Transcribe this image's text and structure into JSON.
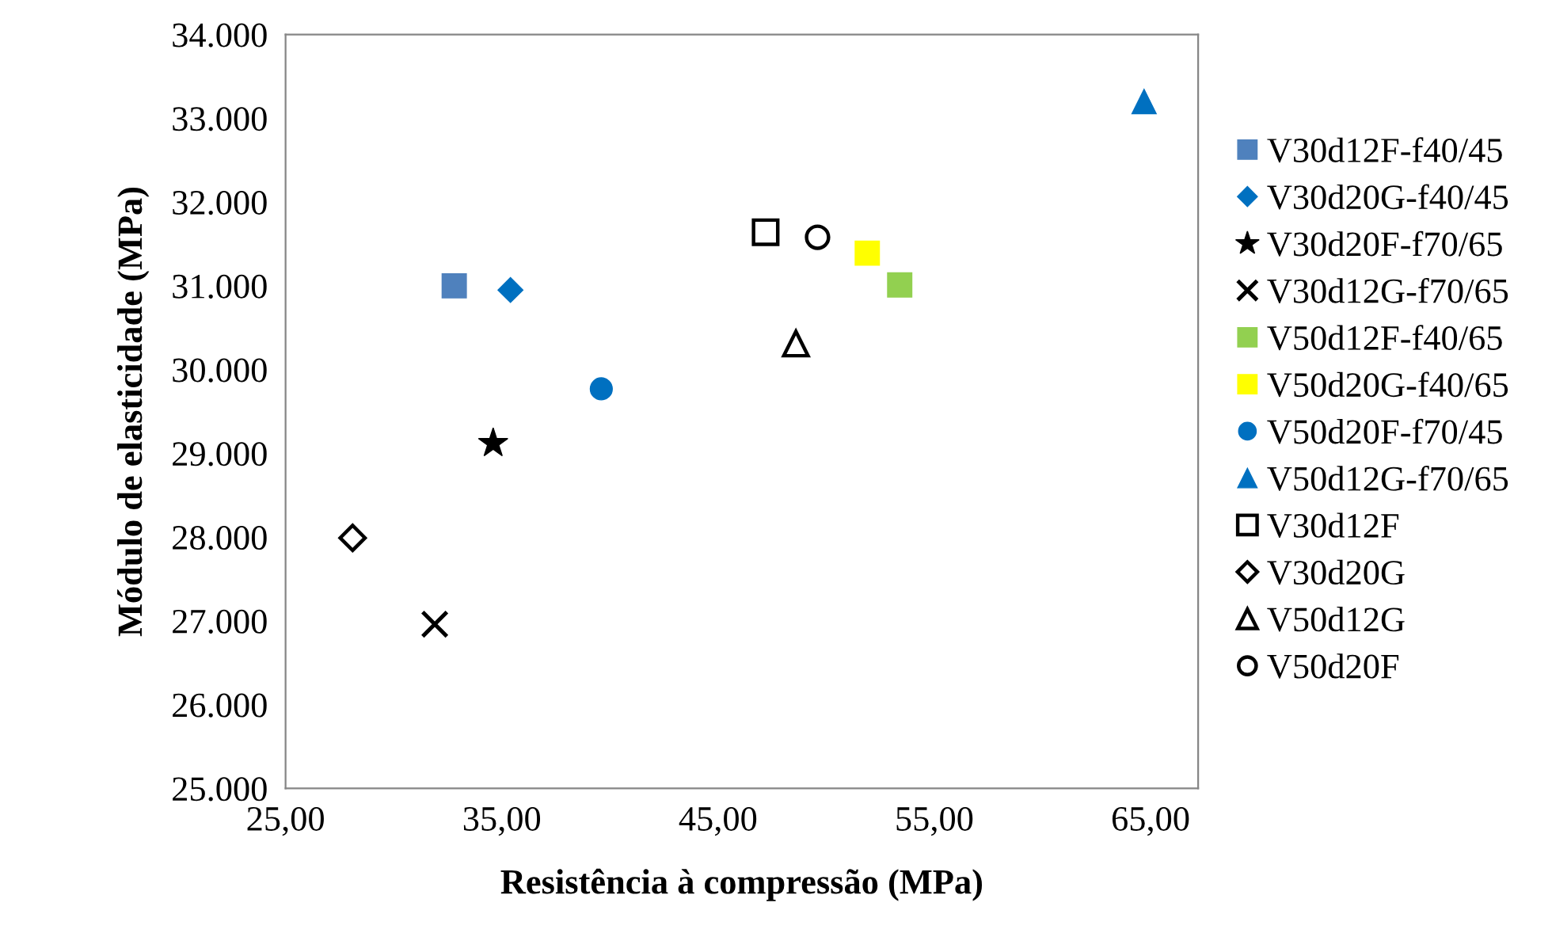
{
  "chart_data": {
    "type": "scatter",
    "xlabel": "Resistência à compressão (MPa)",
    "ylabel": "Módulo de elasticidade (MPa)",
    "xlim": [
      25,
      67.2
    ],
    "xticks": [
      {
        "value": 25,
        "label": "25,00"
      },
      {
        "value": 35,
        "label": "35,00"
      },
      {
        "value": 45,
        "label": "45,00"
      },
      {
        "value": 55,
        "label": "55,00"
      },
      {
        "value": 65,
        "label": "65,00"
      }
    ],
    "ylim": [
      25000,
      34000
    ],
    "yticks": [
      {
        "value": 25000,
        "label": "25.000"
      },
      {
        "value": 26000,
        "label": "26.000"
      },
      {
        "value": 27000,
        "label": "27.000"
      },
      {
        "value": 28000,
        "label": "28.000"
      },
      {
        "value": 29000,
        "label": "29.000"
      },
      {
        "value": 30000,
        "label": "30.000"
      },
      {
        "value": 31000,
        "label": "31.000"
      },
      {
        "value": 32000,
        "label": "32.000"
      },
      {
        "value": 33000,
        "label": "33.000"
      },
      {
        "value": 34000,
        "label": "34.000"
      }
    ],
    "grid": false,
    "legend": "right",
    "series": [
      {
        "name": "V30d12F-f40/45",
        "color": "#4f81bd",
        "marker": "square",
        "x": [
          32.8
        ],
        "values": [
          31000
        ]
      },
      {
        "name": "V30d20G-f40/45",
        "color": "#0070c0",
        "marker": "diamond",
        "x": [
          35.4
        ],
        "values": [
          30950
        ]
      },
      {
        "name": "V30d20F-f70/65",
        "color": "#000000",
        "marker": "star",
        "x": [
          34.6
        ],
        "values": [
          29120
        ]
      },
      {
        "name": "V30d12G-f70/65",
        "color": "#000000",
        "marker": "cross",
        "x": [
          31.9
        ],
        "values": [
          26960
        ]
      },
      {
        "name": "V50d12F-f40/65",
        "color": "#92d050",
        "marker": "square",
        "x": [
          53.4
        ],
        "values": [
          31010
        ]
      },
      {
        "name": "V50d20G-f40/65",
        "color": "#ffff00",
        "marker": "square",
        "x": [
          51.9
        ],
        "values": [
          31390
        ]
      },
      {
        "name": "V50d20F-f70/45",
        "color": "#0070c0",
        "marker": "circle",
        "x": [
          39.6
        ],
        "values": [
          29770
        ]
      },
      {
        "name": "V50d12G-f70/65",
        "color": "#0070c0",
        "marker": "triangle",
        "x": [
          64.7
        ],
        "values": [
          33200
        ]
      },
      {
        "name": "V30d12F",
        "color": "#000000",
        "marker": "square",
        "x": [
          47.2
        ],
        "values": [
          31640
        ]
      },
      {
        "name": "V30d20G",
        "color": "#000000",
        "marker": "diamond",
        "x": [
          28.1
        ],
        "values": [
          27990
        ]
      },
      {
        "name": "V50d12G",
        "color": "#000000",
        "marker": "triangle",
        "x": [
          48.6
        ],
        "values": [
          30310
        ]
      },
      {
        "name": "V50d20F",
        "color": "#000000",
        "marker": "circle",
        "x": [
          49.6
        ],
        "values": [
          31580
        ]
      }
    ]
  }
}
